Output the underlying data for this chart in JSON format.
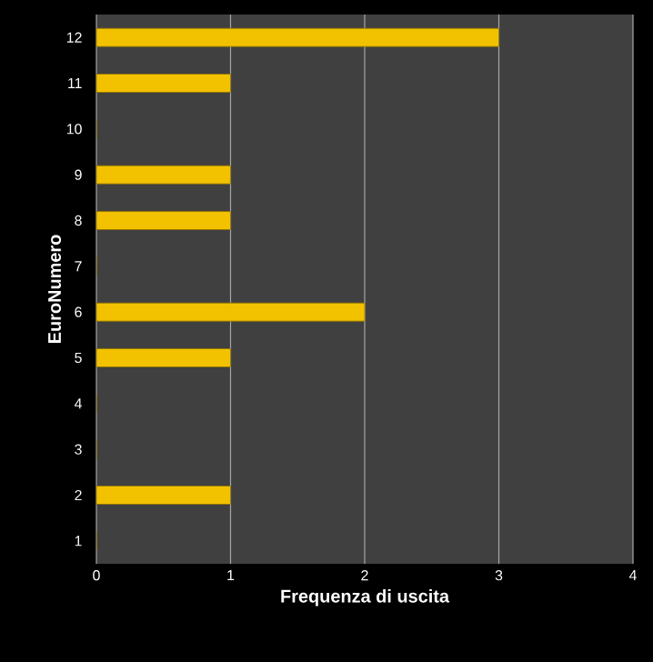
{
  "chart_data": {
    "type": "bar",
    "orientation": "horizontal",
    "xlabel": "Frequenza di uscita",
    "ylabel": "EuroNumero",
    "categories": [
      "12",
      "11",
      "10",
      "9",
      "8",
      "7",
      "6",
      "5",
      "4",
      "3",
      "2",
      "1"
    ],
    "values": [
      3,
      1,
      0,
      1,
      1,
      0,
      2,
      1,
      0,
      0,
      1,
      0
    ],
    "color": "#f2c200",
    "xlim": [
      0,
      4
    ],
    "xticks": [
      0,
      1,
      2,
      3,
      4
    ],
    "grid": "x"
  }
}
